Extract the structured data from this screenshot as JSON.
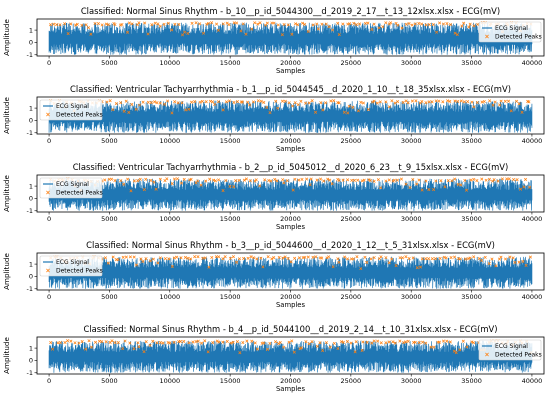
{
  "figure": {
    "colors": {
      "signal": "#1f77b4",
      "peaks": "#ff7f0e",
      "axis": "#000000",
      "background": "#ffffff",
      "legend_border": "#cccccc"
    }
  },
  "chart_data": [
    {
      "type": "line",
      "title": "Classified: Normal Sinus Rhythm - b_10__p_id_5044300__d_2019_2_17__t_13_12xlsx.xlsx - ECG(mV)",
      "xlabel": "Samples",
      "ylabel": "Amplitude",
      "xlim": [
        -1000,
        41000
      ],
      "ylim": [
        -1.1,
        1.9
      ],
      "xticks": [
        0,
        5000,
        10000,
        15000,
        20000,
        25000,
        30000,
        35000,
        40000
      ],
      "yticks": [
        -1,
        0,
        1
      ],
      "x_range": [
        0,
        40000
      ],
      "signal_y_range": [
        -1,
        1.6
      ],
      "peak_y_range": [
        0.6,
        1.6
      ],
      "legend_location": "right",
      "series": [
        {
          "name": "ECG Signal",
          "type": "line"
        },
        {
          "name": "Detected Peaks",
          "type": "scatter",
          "marker": "x"
        }
      ]
    },
    {
      "type": "line",
      "title": "Classified: Ventricular Tachyarrhythmia - b_1__p_id_5044545__d_2020_1_10__t_18_35xlsx.xlsx - ECG(mV)",
      "xlabel": "Samples",
      "ylabel": "Amplitude",
      "xlim": [
        -1000,
        41000
      ],
      "ylim": [
        -1.1,
        1.9
      ],
      "xticks": [
        0,
        5000,
        10000,
        15000,
        20000,
        25000,
        30000,
        35000,
        40000
      ],
      "yticks": [
        -1,
        0,
        1
      ],
      "x_range": [
        0,
        40000
      ],
      "signal_y_range": [
        -1,
        1.6
      ],
      "peak_y_range": [
        0.6,
        1.6
      ],
      "legend_location": "left",
      "series": [
        {
          "name": "ECG Signal",
          "type": "line"
        },
        {
          "name": "Detected Peaks",
          "type": "scatter",
          "marker": "x"
        }
      ]
    },
    {
      "type": "line",
      "title": "Classified: Ventricular Tachyarrhythmia - b_2__p_id_5045012__d_2020_6_23__t_9_15xlsx.xlsx - ECG(mV)",
      "xlabel": "Samples",
      "ylabel": "Amplitude",
      "xlim": [
        -1000,
        41000
      ],
      "ylim": [
        -1.1,
        1.9
      ],
      "xticks": [
        0,
        5000,
        10000,
        15000,
        20000,
        25000,
        30000,
        35000,
        40000
      ],
      "yticks": [
        -1,
        0,
        1
      ],
      "x_range": [
        0,
        40000
      ],
      "signal_y_range": [
        -1,
        1.6
      ],
      "peak_y_range": [
        0.6,
        1.6
      ],
      "legend_location": "left",
      "series": [
        {
          "name": "ECG Signal",
          "type": "line"
        },
        {
          "name": "Detected Peaks",
          "type": "scatter",
          "marker": "x"
        }
      ]
    },
    {
      "type": "line",
      "title": "Classified: Normal Sinus Rhythm - b_3__p_id_5044600__d_2020_1_12__t_5_31xlsx.xlsx - ECG(mV)",
      "xlabel": "Samples",
      "ylabel": "Amplitude",
      "xlim": [
        -1000,
        41000
      ],
      "ylim": [
        -1.1,
        1.9
      ],
      "xticks": [
        0,
        5000,
        10000,
        15000,
        20000,
        25000,
        30000,
        35000,
        40000
      ],
      "yticks": [
        -1,
        0,
        1
      ],
      "x_range": [
        0,
        40000
      ],
      "signal_y_range": [
        -1,
        1.6
      ],
      "peak_y_range": [
        0.6,
        1.6
      ],
      "legend_location": "left",
      "series": [
        {
          "name": "ECG Signal",
          "type": "line"
        },
        {
          "name": "Detected Peaks",
          "type": "scatter",
          "marker": "x"
        }
      ]
    },
    {
      "type": "line",
      "title": "Classified: Normal Sinus Rhythm - b_4__p_id_5044100__d_2019_2_14__t_10_31xlsx.xlsx - ECG(mV)",
      "xlabel": "Samples",
      "ylabel": "Amplitude",
      "xlim": [
        -1000,
        41000
      ],
      "ylim": [
        -1.1,
        1.9
      ],
      "xticks": [
        0,
        5000,
        10000,
        15000,
        20000,
        25000,
        30000,
        35000,
        40000
      ],
      "yticks": [
        -1,
        0,
        1
      ],
      "x_range": [
        0,
        40000
      ],
      "signal_y_range": [
        -1,
        1.6
      ],
      "peak_y_range": [
        0.6,
        1.6
      ],
      "legend_location": "right",
      "series": [
        {
          "name": "ECG Signal",
          "type": "line"
        },
        {
          "name": "Detected Peaks",
          "type": "scatter",
          "marker": "x"
        }
      ]
    }
  ]
}
